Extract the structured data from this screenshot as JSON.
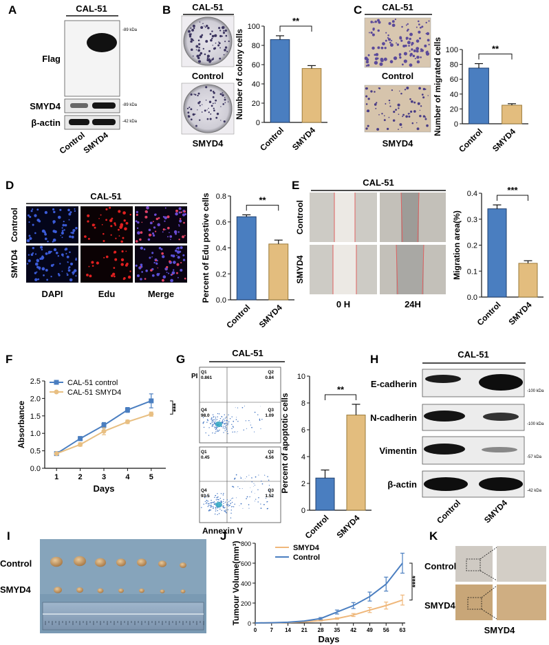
{
  "colors": {
    "blue": "#4a7ec0",
    "tan": "#e3bd7e",
    "edgeBlue": "#1f3f6e",
    "edgeTan": "#9a7a3a",
    "red": "#e03030"
  },
  "panels": {
    "A": {
      "letter": "A",
      "title": "CAL-51",
      "rows": [
        "Flag",
        "SMYD4",
        "β-actin"
      ],
      "kda": [
        "-89 kDa",
        "-89 kDa",
        "-42 kDa"
      ],
      "lanes": [
        "Control",
        "SMYD4"
      ]
    },
    "B": {
      "letter": "B",
      "title": "CAL-51",
      "img_labels": [
        "Control",
        "SMYD4"
      ]
    },
    "C": {
      "letter": "C",
      "title": "CAL-51",
      "img_labels": [
        "Control",
        "SMYD4"
      ]
    },
    "D": {
      "letter": "D",
      "title": "CAL-51",
      "rows": [
        "Controol",
        "SMYD4"
      ],
      "cols": [
        "DAPI",
        "Edu",
        "Merge"
      ]
    },
    "E": {
      "letter": "E",
      "title": "CAL-51",
      "rows": [
        "Controol",
        "SMYD4"
      ],
      "cols": [
        "0 H",
        "24H"
      ]
    },
    "F": {
      "letter": "F"
    },
    "G": {
      "letter": "G",
      "title": "CAL-51",
      "ylab": "PI",
      "xlab": "Annexin V",
      "quad_top": [
        [
          "Q1",
          "0.861"
        ],
        [
          "Q2",
          "0.84"
        ],
        [
          "Q4",
          "98.0"
        ],
        [
          "Q3",
          "1.09"
        ]
      ],
      "quad_bot": [
        [
          "Q1",
          "0.45"
        ],
        [
          "Q2",
          "4.56"
        ],
        [
          "Q4",
          "93.5"
        ],
        [
          "Q3",
          "1.52"
        ]
      ]
    },
    "H": {
      "letter": "H",
      "title": "CAL-51",
      "rows": [
        "E-cadherin",
        "N-cadherin",
        "Vimentin",
        "β-actin"
      ],
      "kda": [
        "-100 kDa",
        "-100 kDa",
        "-57 kDa",
        "-42 kDa"
      ],
      "lanes": [
        "Control",
        "SMYD4"
      ]
    },
    "I": {
      "letter": "I",
      "rows": [
        "Control",
        "SMYD4"
      ]
    },
    "J": {
      "letter": "J"
    },
    "K": {
      "letter": "K",
      "rows": [
        "Control",
        "SMYD4"
      ],
      "caption": "SMYD4"
    }
  },
  "chart_data": [
    {
      "id": "B",
      "type": "bar",
      "categories": [
        "Control",
        "SMYD4"
      ],
      "values": [
        86,
        56
      ],
      "errors": [
        4,
        3
      ],
      "ylabel": "Number of colony cells",
      "ylim": [
        0,
        100
      ],
      "yticks": [
        0,
        20,
        40,
        60,
        80,
        100
      ],
      "sig": "**"
    },
    {
      "id": "C",
      "type": "bar",
      "categories": [
        "Control",
        "SMYD4"
      ],
      "values": [
        75,
        25
      ],
      "errors": [
        6,
        2
      ],
      "ylabel": "Number of migrated cells",
      "ylim": [
        0,
        100
      ],
      "yticks": [
        0,
        20,
        40,
        60,
        80,
        100
      ],
      "sig": "**"
    },
    {
      "id": "D",
      "type": "bar",
      "categories": [
        "Control",
        "SMYD4"
      ],
      "values": [
        0.64,
        0.43
      ],
      "errors": [
        0.015,
        0.03
      ],
      "ylabel": "Percent of Edu postive cells",
      "ylim": [
        0,
        0.8
      ],
      "yticks": [
        0.0,
        0.2,
        0.4,
        0.6,
        0.8
      ],
      "sig": "**"
    },
    {
      "id": "E",
      "type": "bar",
      "categories": [
        "Control",
        "SMYD4"
      ],
      "values": [
        0.34,
        0.13
      ],
      "errors": [
        0.015,
        0.01
      ],
      "ylabel": "Migration area(%)",
      "ylim": [
        0,
        0.4
      ],
      "yticks": [
        0.0,
        0.1,
        0.2,
        0.3,
        0.4
      ],
      "sig": "***"
    },
    {
      "id": "F",
      "type": "line",
      "x": [
        1,
        2,
        3,
        4,
        5
      ],
      "xlabel": "Days",
      "ylabel": "Absorbance",
      "ylim": [
        0,
        2.5
      ],
      "yticks": [
        0.0,
        0.5,
        1.0,
        1.5,
        2.0,
        2.5
      ],
      "series": [
        {
          "name": "CAL-51 control",
          "values": [
            0.42,
            0.85,
            1.23,
            1.67,
            1.93
          ],
          "errors": [
            0.02,
            0.06,
            0.08,
            0.07,
            0.2
          ]
        },
        {
          "name": "CAL-51 SMYD4",
          "values": [
            0.42,
            0.68,
            1.06,
            1.33,
            1.55
          ],
          "errors": [
            0.02,
            0.05,
            0.1,
            0.05,
            0.06
          ]
        }
      ],
      "sig": "***"
    },
    {
      "id": "G",
      "type": "bar",
      "categories": [
        "Control",
        "SMYD4"
      ],
      "values": [
        2.4,
        7.1
      ],
      "errors": [
        0.6,
        0.8
      ],
      "ylabel": "Percent of apoptotic cells",
      "ylim": [
        0,
        10
      ],
      "yticks": [
        0,
        2,
        4,
        6,
        8,
        10
      ],
      "sig": "**"
    },
    {
      "id": "J",
      "type": "line",
      "x": [
        0,
        7,
        14,
        21,
        28,
        35,
        42,
        49,
        56,
        63
      ],
      "xlabel": "Days",
      "ylabel": "Tumour Volume(mm³)",
      "ylim": [
        0,
        800
      ],
      "yticks": [
        0,
        200,
        400,
        600,
        800
      ],
      "series": [
        {
          "name": "SMYD4",
          "values": [
            0,
            2,
            5,
            12,
            25,
            45,
            80,
            130,
            175,
            230
          ],
          "errors": [
            0,
            0,
            0,
            0,
            5,
            8,
            15,
            25,
            35,
            50
          ]
        },
        {
          "name": "Control",
          "values": [
            0,
            3,
            8,
            20,
            45,
            110,
            175,
            265,
            390,
            600
          ],
          "errors": [
            0,
            0,
            0,
            0,
            10,
            20,
            30,
            45,
            70,
            100
          ]
        }
      ],
      "sig": "****"
    }
  ]
}
